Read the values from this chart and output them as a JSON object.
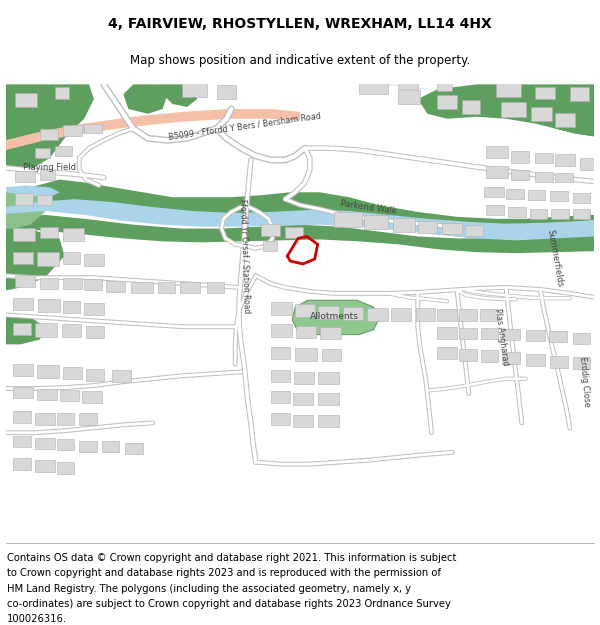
{
  "title": "4, FAIRVIEW, RHOSTYLLEN, WREXHAM, LL14 4HX",
  "subtitle": "Map shows position and indicative extent of the property.",
  "footer_lines": [
    "Contains OS data © Crown copyright and database right 2021. This information is subject",
    "to Crown copyright and database rights 2023 and is reproduced with the permission of",
    "HM Land Registry. The polygons (including the associated geometry, namely x, y",
    "co-ordinates) are subject to Crown copyright and database rights 2023 Ordnance Survey",
    "100026316."
  ],
  "title_fontsize": 10,
  "subtitle_fontsize": 8.5,
  "footer_fontsize": 7.2,
  "water_color": "#aad4ea",
  "green_color": "#5e9e5e",
  "green_light": "#8bbf8b",
  "allotment_color": "#8ec88e",
  "road_fill": "#f0f0f0",
  "road_outline": "#c8c8c8",
  "highlight_road": "#f5c0a8",
  "red_poly": "#cc0000",
  "white": "#ffffff",
  "label_color": "#444444",
  "building_fill": "#d8d8d8",
  "building_edge": "#b0b0b0"
}
